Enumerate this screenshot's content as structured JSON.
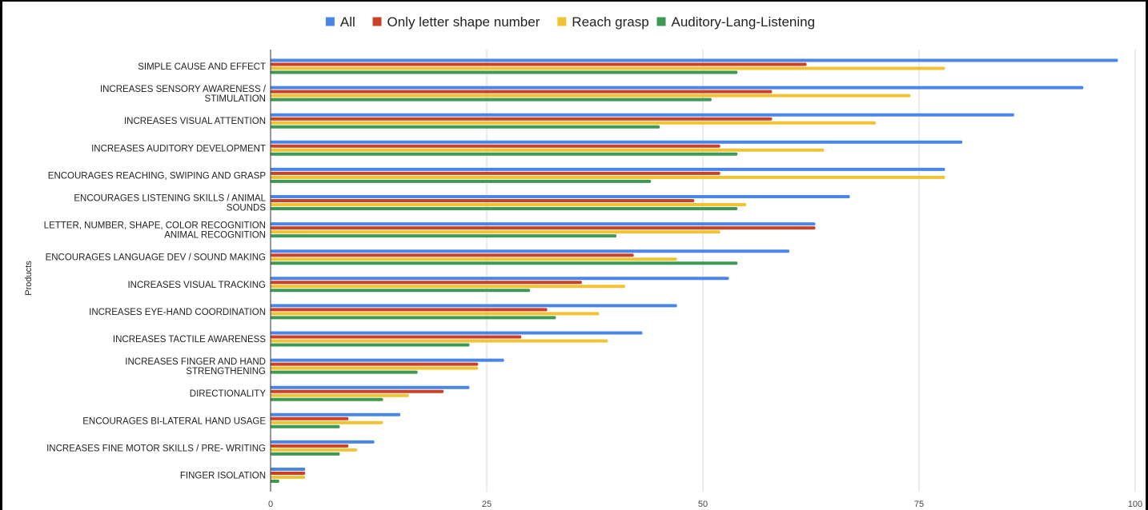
{
  "chart_data": {
    "type": "bar",
    "orientation": "horizontal",
    "title": "",
    "xlabel": "",
    "ylabel": "Products",
    "xlim": [
      0,
      100
    ],
    "x_ticks": [
      "0",
      "25",
      "50",
      "75",
      "100"
    ],
    "grid": true,
    "legend_position": "top",
    "categories": [
      [
        "SIMPLE CAUSE AND EFFECT"
      ],
      [
        "INCREASES SENSORY AWARENESS /",
        "STIMULATION"
      ],
      [
        "INCREASES VISUAL ATTENTION"
      ],
      [
        "INCREASES AUDITORY DEVELOPMENT"
      ],
      [
        "ENCOURAGES REACHING, SWIPING AND GRASP"
      ],
      [
        "ENCOURAGES LISTENING SKILLS / ANIMAL",
        "SOUNDS"
      ],
      [
        "LETTER, NUMBER, SHAPE, COLOR RECOGNITION",
        "ANIMAL RECOGNITION"
      ],
      [
        "ENCOURAGES LANGUAGE DEV / SOUND MAKING"
      ],
      [
        "INCREASES VISUAL TRACKING"
      ],
      [
        "INCREASES EYE-HAND COORDINATION"
      ],
      [
        "INCREASES TACTILE AWARENESS"
      ],
      [
        "INCREASES FINGER AND HAND",
        "STRENGTHENING"
      ],
      [
        "DIRECTIONALITY"
      ],
      [
        "ENCOURAGES BI-LATERAL HAND USAGE"
      ],
      [
        "INCREASES FINE MOTOR SKILLS / PRE- WRITING"
      ],
      [
        "FINGER ISOLATION"
      ]
    ],
    "series": [
      {
        "name": "All",
        "color": "#4a86e8",
        "values": [
          98,
          94,
          86,
          80,
          78,
          67,
          63,
          60,
          53,
          47,
          43,
          27,
          23,
          15,
          12,
          4
        ]
      },
      {
        "name": "Only letter shape number",
        "color": "#cc4125",
        "values": [
          62,
          58,
          58,
          52,
          52,
          49,
          63,
          42,
          36,
          32,
          29,
          24,
          20,
          9,
          9,
          4
        ]
      },
      {
        "name": "Reach grasp",
        "color": "#f1c232",
        "values": [
          78,
          74,
          70,
          64,
          78,
          55,
          52,
          47,
          41,
          38,
          39,
          24,
          16,
          13,
          10,
          4
        ]
      },
      {
        "name": "Auditory-Lang-Listening",
        "color": "#3d9a54",
        "values": [
          54,
          51,
          45,
          54,
          44,
          54,
          40,
          54,
          30,
          33,
          23,
          17,
          13,
          8,
          8,
          1
        ]
      }
    ]
  }
}
